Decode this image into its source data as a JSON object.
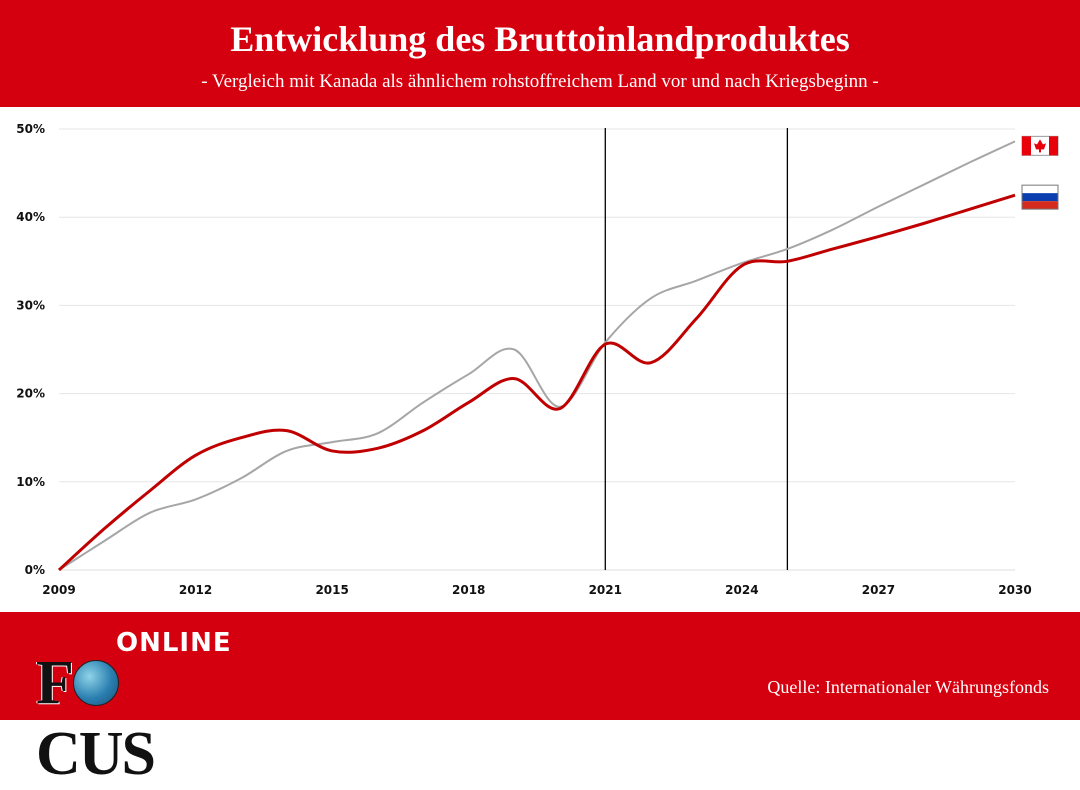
{
  "header": {
    "title": "Entwicklung des Bruttoinlandproduktes",
    "subtitle": "-  Vergleich mit Kanada als ähnlichem rohstoffreichem Land vor und nach Kriegsbeginn -"
  },
  "footer": {
    "source": "Quelle: Internationaler Währungsfonds",
    "logo_text": "FOCUS ONLINE"
  },
  "chart_data": {
    "type": "line",
    "title": "Entwicklung des Bruttoinlandproduktes",
    "xlabel": "",
    "ylabel": "",
    "x": [
      2009,
      2010,
      2011,
      2012,
      2013,
      2014,
      2015,
      2016,
      2017,
      2018,
      2019,
      2020,
      2021,
      2022,
      2023,
      2024,
      2025,
      2026,
      2027,
      2028,
      2029,
      2030
    ],
    "xticks": [
      "2009",
      "2012",
      "2015",
      "2018",
      "2021",
      "2024",
      "2027",
      "2030"
    ],
    "yticks": [
      "0%",
      "10%",
      "20%",
      "30%",
      "40%",
      "50%"
    ],
    "xlim": [
      2009,
      2030
    ],
    "ylim": [
      0,
      50
    ],
    "grid": true,
    "legend": "right (flags)",
    "vertical_markers": [
      2021,
      2025
    ],
    "series": [
      {
        "flag": "canada-flag",
        "color": "#a6a6a6",
        "values": [
          0,
          3.3,
          6.5,
          8.0,
          10.4,
          13.5,
          14.5,
          15.5,
          19.0,
          22.2,
          25.0,
          18.5,
          25.8,
          30.8,
          32.8,
          34.8,
          36.4,
          38.6,
          41.2,
          43.7,
          46.2,
          48.6
        ]
      },
      {
        "flag": "russia-flag",
        "color": "#c00000",
        "values": [
          0,
          4.7,
          9.0,
          13.0,
          15.0,
          15.8,
          13.5,
          13.8,
          15.8,
          19.0,
          21.7,
          18.3,
          25.6,
          23.5,
          28.5,
          34.5,
          35.0,
          36.4,
          37.8,
          39.3,
          40.9,
          42.5
        ]
      }
    ]
  }
}
